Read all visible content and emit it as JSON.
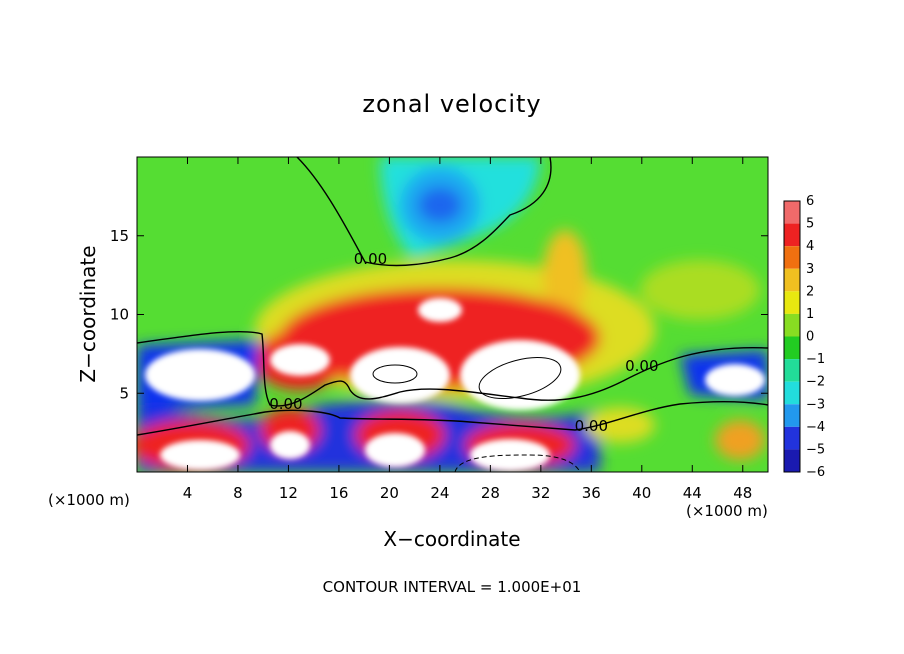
{
  "chart_data": {
    "type": "heatmap",
    "title": "zonal velocity",
    "xlabel": "X−coordinate",
    "ylabel": "Z−coordinate",
    "x_unit_label": "(×1000 m)",
    "z_unit_label": "(×1000 m)",
    "xlim": [
      0,
      50
    ],
    "ylim": [
      0,
      20
    ],
    "x_ticks": [
      4,
      8,
      12,
      16,
      20,
      24,
      28,
      32,
      36,
      40,
      44,
      48
    ],
    "y_ticks": [
      5,
      10,
      15
    ],
    "colorbar": {
      "levels": [
        6,
        5,
        4,
        3,
        2,
        1,
        0,
        -1,
        -2,
        -3,
        -4,
        -5,
        -6
      ],
      "labels": [
        "6",
        "5",
        "4",
        "3",
        "2",
        "1",
        "0",
        "−1",
        "−2",
        "−3",
        "−4",
        "−5",
        "−6"
      ]
    },
    "contour_labels": [
      {
        "text": "0.00",
        "x": 18.5,
        "z": 13.2
      },
      {
        "text": "0.00",
        "x": 11.8,
        "z": 4.0
      },
      {
        "text": "0.00",
        "x": 40.0,
        "z": 6.4
      },
      {
        "text": "0.00",
        "x": 36.0,
        "z": 2.6
      }
    ],
    "contour_interval_text": "CONTOUR INTERVAL = 1.000E+01",
    "grid": false
  }
}
